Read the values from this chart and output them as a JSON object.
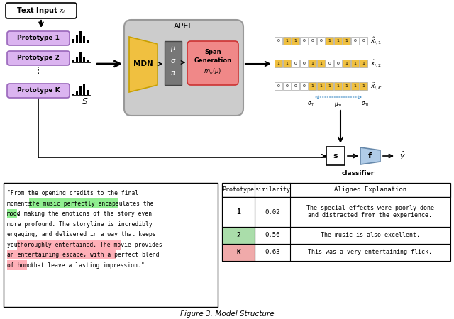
{
  "title": "Figure 3: Model Structure",
  "bg_color": "#ffffff",
  "prototype_labels": [
    "Prototype 1",
    "Prototype 2",
    "Prototype K"
  ],
  "proto_color": "#dbb4f0",
  "proto_border": "#9966bb",
  "text_input_label": "Text Input $x_i$",
  "apel_label": "APEL",
  "mdn_color": "#f0c040",
  "mdn_border": "#c8a000",
  "mdn_label": "MDN",
  "sigma_box_color": "#888888",
  "span_gen_color": "#f08888",
  "span_gen_border": "#cc3333",
  "span_gen_label": "Span\nGeneration\n$m_{\\sigma}(\\mu)$",
  "s_tilde_label": "$\\tilde{S}$",
  "binary_rows": [
    [
      0,
      1,
      1,
      0,
      0,
      0,
      1,
      1,
      1,
      0,
      0
    ],
    [
      1,
      1,
      0,
      0,
      1,
      1,
      0,
      0,
      1,
      1,
      1
    ],
    [
      0,
      0,
      0,
      0,
      1,
      1,
      1,
      1,
      1,
      1,
      1
    ]
  ],
  "row_labels": [
    "$\\hat{x}_{i,1}$",
    "$\\hat{x}_{i,2}$",
    "$\\hat{x}_{i,K}$"
  ],
  "s_box_label": "s",
  "f_box_label": "f",
  "y_hat_label": "$\\hat{y}$",
  "classifier_label": "classifier",
  "apel_bg": "#cccccc",
  "table_headers": [
    "Prototype",
    "similarity",
    "Aligned Explanation"
  ],
  "table_row_data": [
    {
      "proto": "1",
      "sim": "0.02",
      "line1": "The special effects were poorly done",
      "line2": "and distracted from the experience.",
      "bg": "#ffffff"
    },
    {
      "proto": "2",
      "sim": "0.56",
      "line1": "The music is also excellent.",
      "line2": "",
      "bg": "#aaddaa"
    },
    {
      "proto": "K",
      "sim": "0.63",
      "line1": "This was a very entertaining flick.",
      "line2": "",
      "bg": "#f0aaaa"
    }
  ],
  "green_hl": "#90ee90",
  "pink_hl": "#ffb0b8"
}
